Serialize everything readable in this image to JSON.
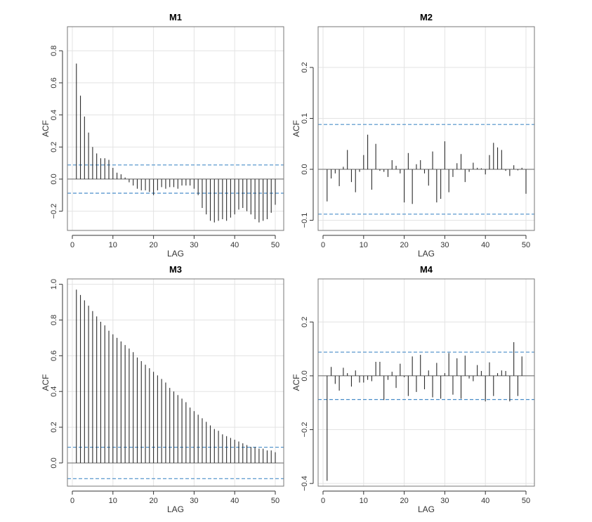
{
  "figure": {
    "type": "acf_grid",
    "layout": "2x2"
  },
  "colors": {
    "bar": "#2b2b2b",
    "ci": "#4a8ec9",
    "grid": "#e3e3e3",
    "frame": "#777777",
    "zero": "#666666"
  },
  "chart_data": [
    {
      "type": "bar",
      "title": "M1",
      "xlabel": "LAG",
      "ylabel": "ACF",
      "xlim": [
        0,
        50
      ],
      "ylim": [
        -0.32,
        0.95
      ],
      "xticks": [
        0,
        10,
        20,
        30,
        40,
        50
      ],
      "yticks": [
        -0.2,
        0.0,
        0.2,
        0.4,
        0.6,
        0.8
      ],
      "ytick_labels": [
        "−0.2",
        "0.0",
        "0.2",
        "0.4",
        "0.6",
        "0.8"
      ],
      "ci": 0.088,
      "lags": [
        1,
        2,
        3,
        4,
        5,
        6,
        7,
        8,
        9,
        10,
        11,
        12,
        13,
        14,
        15,
        16,
        17,
        18,
        19,
        20,
        21,
        22,
        23,
        24,
        25,
        26,
        27,
        28,
        29,
        30,
        31,
        32,
        33,
        34,
        35,
        36,
        37,
        38,
        39,
        40,
        41,
        42,
        43,
        44,
        45,
        46,
        47,
        48,
        49,
        50
      ],
      "values": [
        0.72,
        0.52,
        0.39,
        0.29,
        0.2,
        0.16,
        0.13,
        0.13,
        0.12,
        0.07,
        0.04,
        0.03,
        0.01,
        -0.02,
        -0.04,
        -0.06,
        -0.07,
        -0.07,
        -0.08,
        -0.1,
        -0.07,
        -0.05,
        -0.06,
        -0.05,
        -0.05,
        -0.06,
        -0.04,
        -0.04,
        -0.04,
        -0.06,
        -0.1,
        -0.18,
        -0.22,
        -0.26,
        -0.27,
        -0.26,
        -0.25,
        -0.26,
        -0.24,
        -0.22,
        -0.19,
        -0.18,
        -0.2,
        -0.22,
        -0.25,
        -0.27,
        -0.26,
        -0.25,
        -0.21,
        -0.16
      ]
    },
    {
      "type": "bar",
      "title": "M2",
      "xlabel": "LAG",
      "ylabel": "ACF",
      "xlim": [
        0,
        50
      ],
      "ylim": [
        -0.12,
        0.28
      ],
      "xticks": [
        0,
        10,
        20,
        30,
        40,
        50
      ],
      "yticks": [
        -0.1,
        0.0,
        0.1,
        0.2
      ],
      "ytick_labels": [
        "−0.1",
        "0.0",
        "0.1",
        "0.2"
      ],
      "ci": 0.088,
      "lags": [
        1,
        2,
        3,
        4,
        5,
        6,
        7,
        8,
        9,
        10,
        11,
        12,
        13,
        14,
        15,
        16,
        17,
        18,
        19,
        20,
        21,
        22,
        23,
        24,
        25,
        26,
        27,
        28,
        29,
        30,
        31,
        32,
        33,
        34,
        35,
        36,
        37,
        38,
        39,
        40,
        41,
        42,
        43,
        44,
        45,
        46,
        47,
        48,
        49,
        50
      ],
      "values": [
        -0.063,
        -0.018,
        -0.008,
        -0.033,
        0.005,
        0.038,
        -0.025,
        -0.045,
        -0.005,
        0.028,
        0.068,
        -0.04,
        0.05,
        -0.003,
        -0.005,
        -0.015,
        0.018,
        0.007,
        -0.008,
        -0.065,
        0.032,
        -0.068,
        0.01,
        0.018,
        -0.008,
        -0.032,
        0.035,
        -0.065,
        -0.058,
        0.055,
        -0.045,
        -0.015,
        0.012,
        0.03,
        -0.025,
        -0.005,
        0.013,
        0.003,
        0.002,
        -0.01,
        0.028,
        0.052,
        0.043,
        0.038,
        -0.003,
        -0.013,
        0.008,
        -0.002,
        0.003,
        -0.048
      ]
    },
    {
      "type": "bar",
      "title": "M3",
      "xlabel": "LAG",
      "ylabel": "ACF",
      "xlim": [
        0,
        50
      ],
      "ylim": [
        -0.13,
        1.03
      ],
      "xticks": [
        0,
        10,
        20,
        30,
        40,
        50
      ],
      "yticks": [
        0.0,
        0.2,
        0.4,
        0.6,
        0.8,
        1.0
      ],
      "ytick_labels": [
        "0.0",
        "0.2",
        "0.4",
        "0.6",
        "0.8",
        "1.0"
      ],
      "ci": 0.088,
      "lags": [
        1,
        2,
        3,
        4,
        5,
        6,
        7,
        8,
        9,
        10,
        11,
        12,
        13,
        14,
        15,
        16,
        17,
        18,
        19,
        20,
        21,
        22,
        23,
        24,
        25,
        26,
        27,
        28,
        29,
        30,
        31,
        32,
        33,
        34,
        35,
        36,
        37,
        38,
        39,
        40,
        41,
        42,
        43,
        44,
        45,
        46,
        47,
        48,
        49,
        50
      ],
      "values": [
        0.97,
        0.94,
        0.91,
        0.88,
        0.85,
        0.82,
        0.79,
        0.77,
        0.74,
        0.72,
        0.7,
        0.68,
        0.66,
        0.64,
        0.62,
        0.59,
        0.57,
        0.55,
        0.53,
        0.51,
        0.49,
        0.47,
        0.45,
        0.42,
        0.4,
        0.38,
        0.36,
        0.34,
        0.31,
        0.29,
        0.27,
        0.25,
        0.23,
        0.21,
        0.19,
        0.18,
        0.16,
        0.15,
        0.14,
        0.13,
        0.12,
        0.11,
        0.1,
        0.09,
        0.09,
        0.08,
        0.08,
        0.07,
        0.07,
        0.06
      ]
    },
    {
      "type": "bar",
      "title": "M4",
      "xlabel": "LAG",
      "ylabel": "ACF",
      "xlim": [
        0,
        50
      ],
      "ylim": [
        -0.41,
        0.36
      ],
      "xticks": [
        0,
        10,
        20,
        30,
        40,
        50
      ],
      "yticks": [
        -0.4,
        -0.2,
        0.0,
        0.2
      ],
      "ytick_labels": [
        "−0.4",
        "−0.2",
        "0.0",
        "0.2"
      ],
      "ci": 0.088,
      "lags": [
        1,
        2,
        3,
        4,
        5,
        6,
        7,
        8,
        9,
        10,
        11,
        12,
        13,
        14,
        15,
        16,
        17,
        18,
        19,
        20,
        21,
        22,
        23,
        24,
        25,
        26,
        27,
        28,
        29,
        30,
        31,
        32,
        33,
        34,
        35,
        36,
        37,
        38,
        39,
        40,
        41,
        42,
        43,
        44,
        45,
        46,
        47,
        48,
        49,
        50
      ],
      "values": [
        -0.39,
        0.033,
        -0.03,
        -0.055,
        0.03,
        0.01,
        -0.04,
        0.02,
        -0.025,
        -0.025,
        -0.015,
        -0.02,
        0.052,
        0.052,
        -0.09,
        -0.015,
        0.015,
        -0.045,
        0.045,
        -0.005,
        -0.075,
        0.072,
        -0.06,
        0.078,
        -0.05,
        0.02,
        -0.08,
        0.048,
        -0.085,
        0.01,
        0.085,
        -0.07,
        0.065,
        -0.085,
        0.075,
        -0.01,
        -0.02,
        0.04,
        0.018,
        -0.095,
        0.05,
        -0.075,
        0.01,
        0.02,
        0.018,
        -0.095,
        0.125,
        -0.075,
        0.072,
        0.0
      ]
    }
  ]
}
